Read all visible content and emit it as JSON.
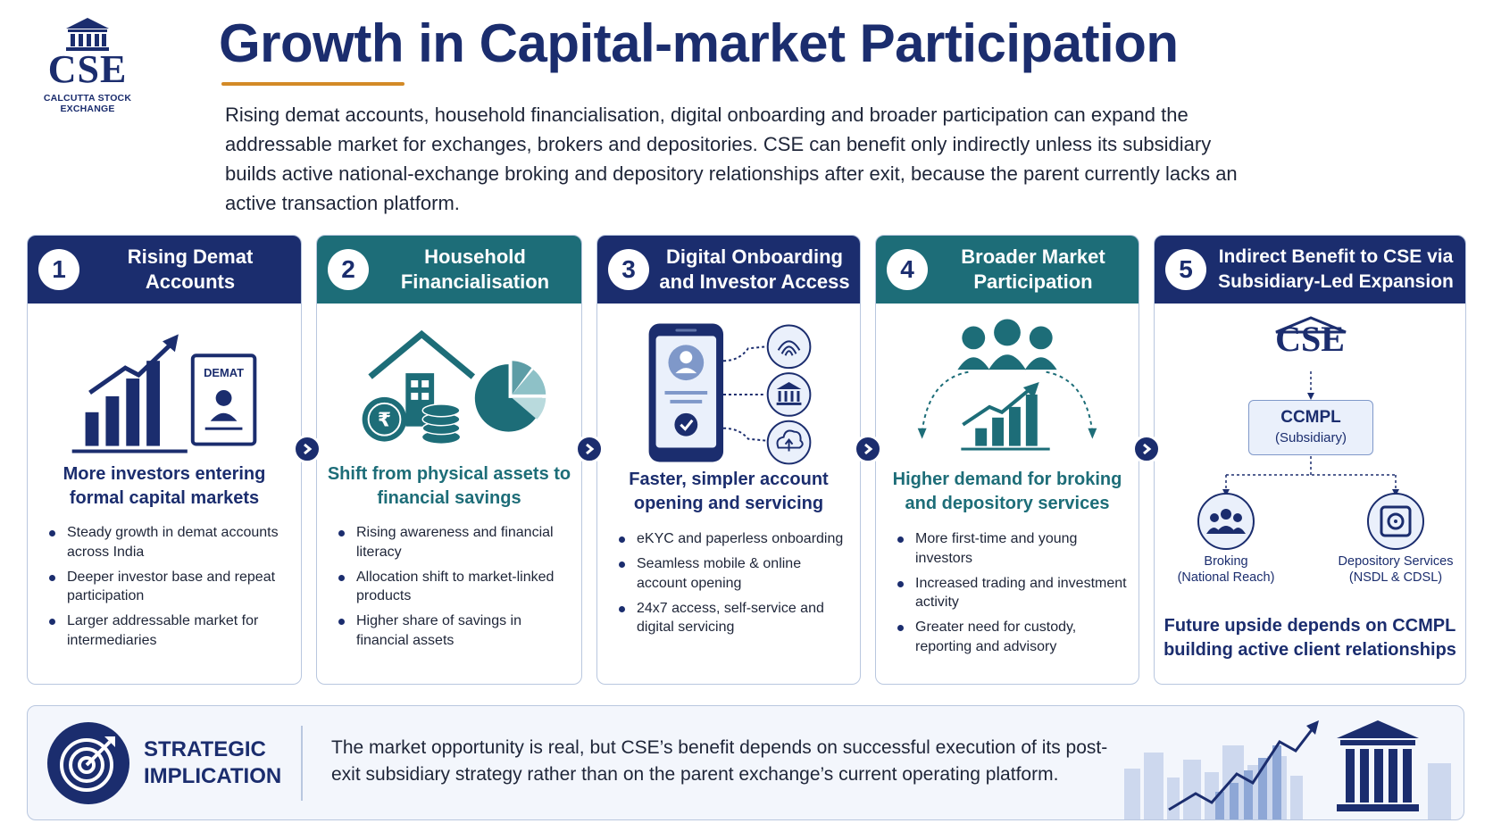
{
  "logo": {
    "abbr": "CSE",
    "name": "CALCUTTA STOCK EXCHANGE"
  },
  "title": "Growth in Capital-market Participation",
  "intro": "Rising demat accounts, household financialisation, digital onboarding and broader participation can expand the addressable market for exchanges, brokers and depositories. CSE can benefit only indirectly unless its subsidiary builds active national-exchange broking and depository relationships after exit, because the parent currently lacks an active transaction platform.",
  "colors": {
    "navy": "#1b2d6e",
    "teal": "#1d6d78",
    "accent": "#d38a27",
    "border": "#b9c7df"
  },
  "cards": [
    {
      "number": "1",
      "title": "Rising Demat Accounts",
      "head_color": "navy",
      "icon": "bar-chart-growth-icon",
      "badge": "DEMAT",
      "subtitle": "More investors entering formal capital markets",
      "bullets": [
        "Steady growth in demat accounts across India",
        "Deeper investor base and repeat participation",
        "Larger addressable market for intermediaries"
      ]
    },
    {
      "number": "2",
      "title": "Household Financialisation",
      "head_color": "teal",
      "icon": "house-coins-pie-icon",
      "subtitle": "Shift from physical assets to financial savings",
      "bullets": [
        "Rising awareness and financial literacy",
        "Allocation shift to market-linked products",
        "Higher share of savings in financial assets"
      ]
    },
    {
      "number": "3",
      "title": "Digital Onboarding and Investor Access",
      "head_color": "navy",
      "icon": "mobile-onboarding-icon",
      "subtitle": "Faster, simpler account opening and servicing",
      "bullets": [
        "eKYC and paperless onboarding",
        "Seamless mobile & online account opening",
        "24x7 access, self-service and digital servicing"
      ]
    },
    {
      "number": "4",
      "title": "Broader Market Participation",
      "head_color": "teal",
      "icon": "people-growth-icon",
      "subtitle": "Higher demand for broking and depository services",
      "bullets": [
        "More first-time and young investors",
        "Increased trading and investment activity",
        "Greater need for custody, reporting and advisory"
      ]
    },
    {
      "number": "5",
      "title": "Indirect Benefit to CSE via Subsidiary-Led Expansion",
      "head_color": "navy",
      "cse": "CSE",
      "ccmpl": {
        "name": "CCMPL",
        "sub": "(Subsidiary)"
      },
      "leaves": [
        {
          "label": "Broking",
          "sub": "(National Reach)",
          "icon": "people-group-icon"
        },
        {
          "label": "Depository Services",
          "sub": "(NSDL & CDSL)",
          "icon": "vault-icon"
        }
      ],
      "footer": "Future upside depends on CCMPL building active client relationships"
    }
  ],
  "banner": {
    "label_line1": "STRATEGIC",
    "label_line2": "IMPLICATION",
    "text": "The market opportunity is real, but CSE’s benefit depends on successful execution of its post-exit subsidiary strategy rather than on the parent exchange’s current operating platform.",
    "icon": "target-arrow-icon"
  }
}
